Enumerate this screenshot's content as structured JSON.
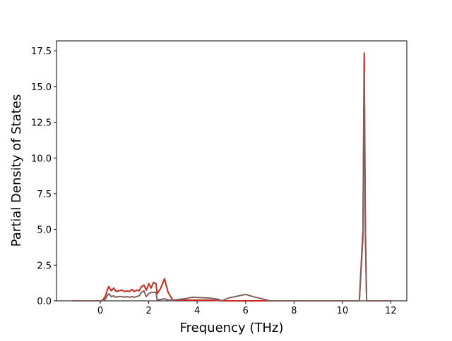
{
  "chart_data": {
    "type": "line",
    "x_label": "Frequency (THz)",
    "y_label": "Partial Density of States",
    "x": [
      -1.15,
      0,
      0.1,
      0.2,
      0.3,
      0.35,
      0.45,
      0.55,
      0.65,
      0.75,
      0.9,
      1.0,
      1.1,
      1.2,
      1.3,
      1.4,
      1.5,
      1.6,
      1.7,
      1.8,
      1.9,
      2.0,
      2.1,
      2.2,
      2.3,
      2.35,
      2.5,
      2.65,
      2.8,
      2.9,
      3.0,
      3.5,
      3.8,
      4.5,
      4.9,
      5.0,
      5.3,
      6.0,
      6.3,
      6.9,
      7.0,
      10.7,
      10.85,
      10.9,
      10.95,
      11.0,
      12
    ],
    "series": [
      {
        "color": "#c8281e",
        "values": [
          0,
          0,
          0.05,
          0.3,
          0.8,
          1.0,
          0.7,
          0.9,
          0.65,
          0.7,
          0.75,
          0.65,
          0.7,
          0.65,
          0.8,
          0.65,
          0.75,
          0.7,
          1.0,
          1.1,
          0.75,
          1.2,
          0.9,
          1.3,
          1.2,
          0.5,
          0.9,
          1.55,
          0.6,
          0.3,
          0.05,
          0.05,
          0.05,
          0.05,
          0.02,
          0,
          0,
          0,
          0,
          0,
          0,
          0,
          5,
          17.35,
          5,
          0,
          0
        ]
      },
      {
        "color": "#80605a",
        "values": [
          0,
          0,
          0,
          0.1,
          0.4,
          0.5,
          0.3,
          0.35,
          0.25,
          0.3,
          0.3,
          0.25,
          0.3,
          0.25,
          0.3,
          0.25,
          0.3,
          0.35,
          0.6,
          0.7,
          0.3,
          0.5,
          0.6,
          0.6,
          0.6,
          0.05,
          0.1,
          0.15,
          0.05,
          0.05,
          0.05,
          0.15,
          0.25,
          0.2,
          0.1,
          0,
          0.2,
          0.45,
          0.3,
          0.05,
          0,
          0,
          4.5,
          15.9,
          4.5,
          0,
          0
        ]
      }
    ],
    "xlim": [
      -1.81,
      12.66
    ],
    "ylim": [
      0,
      18.2
    ],
    "xticks": [
      0,
      2,
      4,
      6,
      8,
      10,
      12
    ],
    "yticks": [
      {
        "value": 0,
        "label": "0.0"
      },
      2.5,
      {
        "value": 5,
        "label": "5.0"
      },
      7.5,
      {
        "value": 10,
        "label": "10.0"
      },
      12.5,
      {
        "value": 15,
        "label": "15.0"
      },
      17.5
    ]
  }
}
